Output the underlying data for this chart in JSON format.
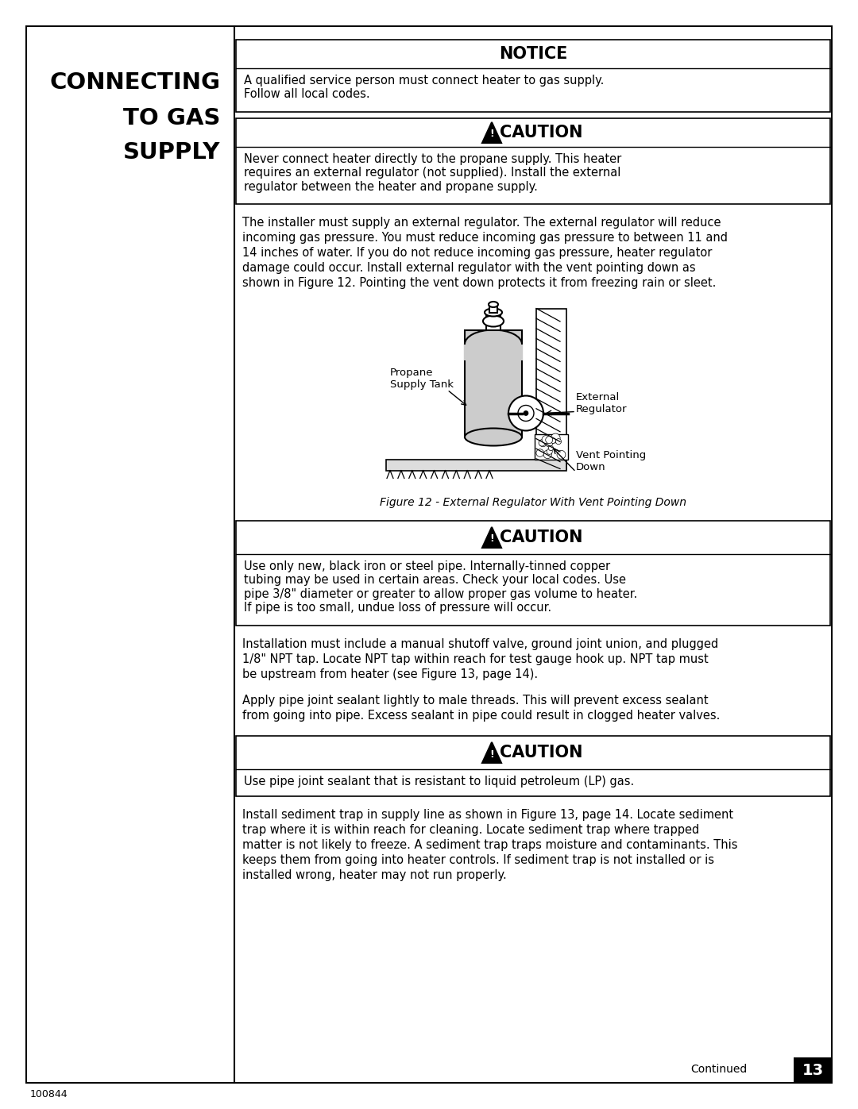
{
  "page_bg": "#ffffff",
  "left_title_lines": [
    "CONNECTING",
    "TO GAS",
    "SUPPLY"
  ],
  "notice_title": "NOTICE",
  "notice_text": "A qualified service person must connect heater to gas supply.\nFollow all local codes.",
  "caution_title": "CAUTION",
  "caution1_text": "Never connect heater directly to the propane supply. This heater\nrequires an external regulator (not supplied). Install the external\nregulator between the heater and propane supply.",
  "body_text1_lines": [
    "The installer must supply an external regulator. The external regulator will reduce",
    "incoming gas pressure. You must reduce incoming gas pressure to between 11 and",
    "14 inches of water. If you do not reduce incoming gas pressure, heater regulator",
    "damage could occur. Install external regulator with the vent pointing down as",
    "shown in Figure 12. Pointing the vent down protects it from freezing rain or sleet."
  ],
  "figure_caption": "Figure 12 - External Regulator With Vent Pointing Down",
  "label_propane": "Propane\nSupply Tank",
  "label_external": "External\nRegulator",
  "label_vent": "Vent Pointing\nDown",
  "caution2_text": "Use only new, black iron or steel pipe. Internally-tinned copper\ntubing may be used in certain areas. Check your local codes. Use\npipe 3/8\" diameter or greater to allow proper gas volume to heater.\nIf pipe is too small, undue loss of pressure will occur.",
  "body_text2_lines": [
    "Installation must include a manual shutoff valve, ground joint union, and plugged",
    "1/8\" NPT tap. Locate NPT tap within reach for test gauge hook up. NPT tap must",
    "be upstream from heater (see Figure 13, page 14)."
  ],
  "body_text3_lines": [
    "Apply pipe joint sealant lightly to male threads. This will prevent excess sealant",
    "from going into pipe. Excess sealant in pipe could result in clogged heater valves."
  ],
  "caution3_text": "Use pipe joint sealant that is resistant to liquid petroleum (LP) gas.",
  "body_text4_lines": [
    "Install sediment trap in supply line as shown in Figure 13, page 14. Locate sediment",
    "trap where it is within reach for cleaning. Locate sediment trap where trapped",
    "matter is not likely to freeze. A sediment trap traps moisture and contaminants. This",
    "keeps them from going into heater controls. If sediment trap is not installed or is",
    "installed wrong, heater may not run properly."
  ],
  "continued_text": "Continued",
  "page_number": "13",
  "footer_text": "100844",
  "tank_fill": "#cccccc",
  "ground_fill": "#dddddd"
}
